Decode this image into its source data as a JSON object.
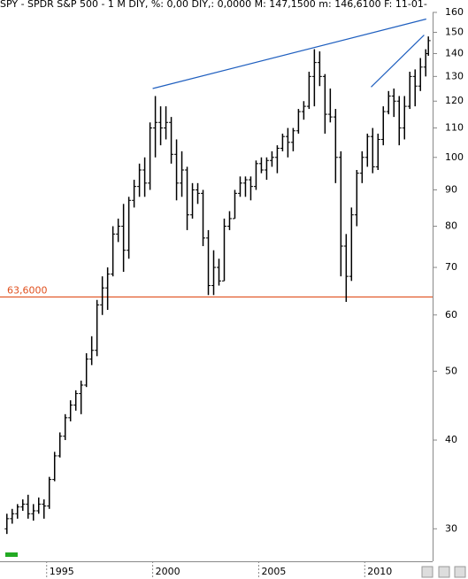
{
  "chart_data": {
    "type": "ohlc",
    "title": "SPY - SPDR S&P 500 - 1 M DIY, %: 0,00 DIY,: 0,0000 M: 147,1500 m: 146,6100 F: 11-01-",
    "x": [
      1993.125,
      1993.375,
      1993.625,
      1993.875,
      1994.125,
      1994.375,
      1994.625,
      1994.875,
      1995.125,
      1995.375,
      1995.625,
      1995.875,
      1996.125,
      1996.375,
      1996.625,
      1996.875,
      1997.125,
      1997.375,
      1997.625,
      1997.875,
      1998.125,
      1998.375,
      1998.625,
      1998.875,
      1999.125,
      1999.375,
      1999.625,
      1999.875,
      2000.125,
      2000.375,
      2000.625,
      2000.875,
      2001.125,
      2001.375,
      2001.625,
      2001.875,
      2002.125,
      2002.375,
      2002.625,
      2002.875,
      2003.125,
      2003.375,
      2003.625,
      2003.875,
      2004.125,
      2004.375,
      2004.625,
      2004.875,
      2005.125,
      2005.375,
      2005.625,
      2005.875,
      2006.125,
      2006.375,
      2006.625,
      2006.875,
      2007.125,
      2007.375,
      2007.625,
      2007.875,
      2008.125,
      2008.375,
      2008.625,
      2008.875,
      2009.125,
      2009.375,
      2009.625,
      2009.875,
      2010.125,
      2010.375,
      2010.625,
      2010.875,
      2011.125,
      2011.375,
      2011.625,
      2011.875,
      2012.125,
      2012.375,
      2012.625,
      2012.875,
      2013.0
    ],
    "open": [
      30,
      31,
      31.5,
      32.2,
      32.5,
      31.5,
      31.8,
      32.5,
      32.3,
      35.2,
      38,
      40.5,
      43,
      44.8,
      46.5,
      47.8,
      52,
      53.5,
      62,
      65.5,
      68.5,
      78,
      80,
      74,
      87,
      91,
      96,
      92,
      110,
      112,
      110,
      112,
      101,
      92,
      96,
      83,
      90,
      89,
      77,
      66,
      70,
      67,
      80,
      82,
      89,
      92,
      93,
      91,
      98,
      96,
      99,
      100,
      103,
      107,
      105,
      109,
      116,
      118,
      130,
      136,
      130,
      115,
      114,
      100,
      75,
      68,
      83,
      95,
      100,
      107,
      97,
      106,
      116,
      122,
      120,
      110,
      118,
      130,
      126,
      134,
      140
    ],
    "high": [
      31.5,
      32,
      32.5,
      33,
      33.5,
      32.5,
      33.2,
      33,
      35.5,
      38.5,
      41,
      43.5,
      45.5,
      47,
      48.5,
      53,
      56,
      63,
      68,
      70,
      80,
      82,
      86,
      88,
      93,
      98,
      100,
      112,
      122,
      118,
      118,
      114,
      106,
      102,
      97,
      92,
      92,
      90,
      79,
      74,
      72,
      82,
      84,
      90,
      94,
      94,
      94,
      99,
      100,
      100,
      102,
      104,
      108,
      110,
      110,
      117,
      120,
      132,
      142,
      141,
      131,
      125,
      117,
      102,
      78,
      85,
      96,
      102,
      108,
      110,
      108,
      118,
      124,
      125,
      122,
      122,
      132,
      133,
      138,
      142,
      148
    ],
    "low": [
      29.5,
      30.5,
      31,
      31.8,
      31,
      30.8,
      31.5,
      31,
      32,
      35,
      37.8,
      40,
      42.5,
      44,
      43.5,
      47.5,
      51,
      52.5,
      60,
      61,
      68,
      76,
      69,
      72,
      85,
      88,
      88,
      90,
      100,
      104,
      106,
      98,
      87,
      88,
      79,
      82,
      86,
      75,
      64,
      64,
      66,
      67,
      79,
      82,
      88,
      88,
      87,
      90,
      95,
      93,
      97,
      95,
      102,
      100,
      102,
      108,
      113,
      117,
      118,
      126,
      108,
      112,
      92,
      68,
      62.6,
      67,
      80,
      92,
      97,
      95,
      96,
      104,
      115,
      114,
      104,
      106,
      117,
      118,
      124,
      130,
      139
    ],
    "close": [
      31,
      31.5,
      32.2,
      32.5,
      31.5,
      31.8,
      32.5,
      32.3,
      35.2,
      38,
      40.5,
      43,
      44.8,
      46.5,
      47.8,
      52,
      53.5,
      62,
      65.5,
      68.5,
      78,
      80,
      74,
      87,
      91,
      96,
      92,
      110,
      112,
      110,
      112,
      101,
      92,
      96,
      83,
      90,
      89,
      77,
      66,
      70,
      67,
      80,
      82,
      89,
      92,
      93,
      91,
      98,
      96,
      99,
      100,
      103,
      107,
      105,
      109,
      116,
      118,
      130,
      136,
      130,
      115,
      114,
      100,
      75,
      68,
      83,
      95,
      100,
      107,
      97,
      106,
      116,
      122,
      120,
      110,
      118,
      130,
      126,
      134,
      140,
      146
    ],
    "color": "#000000",
    "trend_lines": [
      {
        "x": [
          2000.0,
          2012.9
        ],
        "y": [
          125,
          156.6
        ],
        "color": "#1f5fbf"
      },
      {
        "x": [
          2010.3,
          2012.8
        ],
        "y": [
          125.6,
          148.7
        ],
        "color": "#1f5fbf"
      }
    ],
    "hlines": [
      {
        "value": 63.6,
        "label": "63,6000",
        "color": "#e0501e"
      }
    ],
    "log_scale": true,
    "xlim": [
      1992.8,
      2013.2
    ],
    "xticks": [
      1995,
      2000,
      2005,
      2010
    ],
    "ylim": [
      27,
      160
    ],
    "yticks": [
      30,
      40,
      50,
      60,
      70,
      80,
      90,
      100,
      110,
      120,
      130,
      140,
      150,
      160
    ]
  }
}
